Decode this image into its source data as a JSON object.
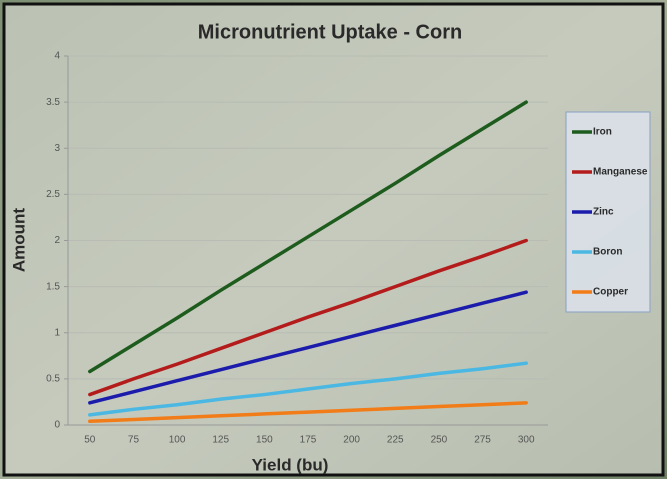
{
  "chart_data": {
    "type": "line",
    "title": "Micronutrient Uptake - Corn",
    "x_label": "Yield (bu)",
    "y_label": "Amount",
    "categories": [
      "50",
      "75",
      "100",
      "125",
      "150",
      "175",
      "200",
      "225",
      "250",
      "275",
      "300"
    ],
    "series": [
      {
        "name": "Iron",
        "color": "#1e5c1e",
        "values": [
          0.58,
          0.87,
          1.16,
          1.46,
          1.75,
          2.04,
          2.33,
          2.62,
          2.92,
          3.21,
          3.5
        ]
      },
      {
        "name": "Manganese",
        "color": "#b41c1c",
        "values": [
          0.33,
          0.5,
          0.66,
          0.83,
          1.0,
          1.17,
          1.33,
          1.5,
          1.67,
          1.83,
          2.0
        ]
      },
      {
        "name": "Zinc",
        "color": "#1c1cac",
        "values": [
          0.24,
          0.36,
          0.48,
          0.6,
          0.72,
          0.84,
          0.96,
          1.08,
          1.2,
          1.32,
          1.44
        ]
      },
      {
        "name": "Boron",
        "color": "#4ab8e2",
        "values": [
          0.11,
          0.17,
          0.22,
          0.28,
          0.33,
          0.39,
          0.45,
          0.5,
          0.56,
          0.61,
          0.67
        ]
      },
      {
        "name": "Copper",
        "color": "#f27c18",
        "values": [
          0.04,
          0.06,
          0.08,
          0.1,
          0.12,
          0.14,
          0.16,
          0.18,
          0.2,
          0.22,
          0.24
        ]
      }
    ],
    "ylim": [
      0,
      4
    ],
    "yticks": [
      0,
      0.5,
      1,
      1.5,
      2,
      2.5,
      3,
      3.5,
      4
    ],
    "grid": true,
    "legend": "right"
  }
}
